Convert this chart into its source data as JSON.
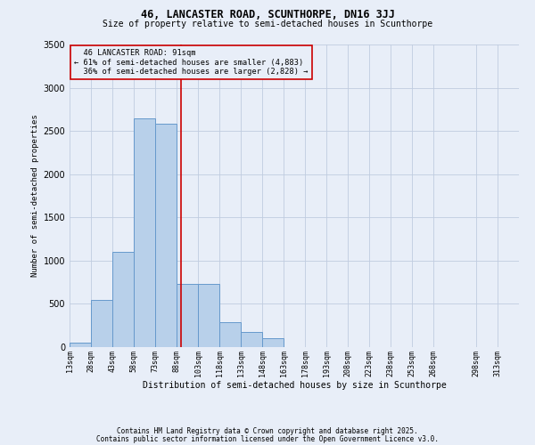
{
  "title1": "46, LANCASTER ROAD, SCUNTHORPE, DN16 3JJ",
  "title2": "Size of property relative to semi-detached houses in Scunthorpe",
  "xlabel": "Distribution of semi-detached houses by size in Scunthorpe",
  "ylabel": "Number of semi-detached properties",
  "property_label": "46 LANCASTER ROAD: 91sqm",
  "pct_smaller": 61,
  "count_smaller": 4883,
  "pct_larger": 36,
  "count_larger": 2828,
  "bin_labels": [
    "13sqm",
    "28sqm",
    "43sqm",
    "58sqm",
    "73sqm",
    "88sqm",
    "103sqm",
    "118sqm",
    "133sqm",
    "148sqm",
    "163sqm",
    "178sqm",
    "193sqm",
    "208sqm",
    "223sqm",
    "238sqm",
    "253sqm",
    "268sqm",
    "298sqm",
    "313sqm"
  ],
  "bin_starts": [
    13,
    28,
    43,
    58,
    73,
    88,
    103,
    118,
    133,
    148,
    163,
    178,
    193,
    208,
    223,
    238,
    253,
    268,
    298,
    313
  ],
  "bar_heights": [
    50,
    550,
    1100,
    2650,
    2580,
    730,
    730,
    290,
    170,
    100,
    0,
    0,
    0,
    0,
    0,
    0,
    0,
    0,
    0,
    0
  ],
  "bar_color": "#b8d0ea",
  "bar_edge_color": "#6699cc",
  "vline_x": 91,
  "vline_color": "#cc0000",
  "annotation_box_color": "#cc0000",
  "background_color": "#e8eef8",
  "grid_color": "#c0cce0",
  "ylim": [
    0,
    3500
  ],
  "yticks": [
    0,
    500,
    1000,
    1500,
    2000,
    2500,
    3000,
    3500
  ],
  "footnote1": "Contains HM Land Registry data © Crown copyright and database right 2025.",
  "footnote2": "Contains public sector information licensed under the Open Government Licence v3.0."
}
